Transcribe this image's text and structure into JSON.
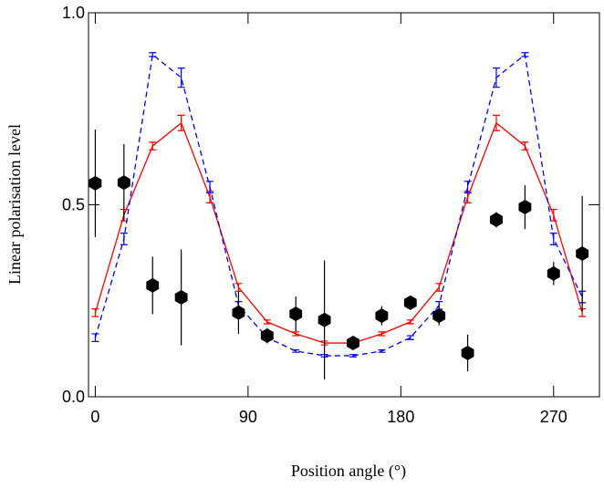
{
  "chart_data": {
    "type": "line",
    "xlabel": "Position angle (°)",
    "ylabel": "Linear polarisation level",
    "x": [
      0,
      16.875,
      33.75,
      50.625,
      67.5,
      84.375,
      101.25,
      118.125,
      135,
      151.875,
      168.75,
      185.625,
      202.5,
      219.375,
      236.25,
      253.125,
      270,
      286.875
    ],
    "xlim": [
      -4,
      297
    ],
    "xticks": [
      0,
      90,
      180,
      270
    ],
    "ylim": [
      0,
      1
    ],
    "yticks": [
      {
        "value": 0,
        "label": "0.0"
      },
      0.5,
      {
        "value": 1,
        "label": "1.0"
      }
    ],
    "series": [
      {
        "type": "line",
        "color": "#ff0000",
        "dashed": false,
        "values": [
          0.219,
          0.473,
          0.653,
          0.713,
          0.52,
          0.285,
          0.195,
          0.164,
          0.14,
          0.14,
          0.164,
          0.195,
          0.285,
          0.52,
          0.713,
          0.653,
          0.473,
          0.219
        ],
        "errors": [
          0.01,
          0.015,
          0.01,
          0.02,
          0.015,
          0.01,
          0.005,
          0.005,
          0.005,
          0.005,
          0.005,
          0.005,
          0.01,
          0.015,
          0.02,
          0.01,
          0.015,
          0.01
        ]
      },
      {
        "type": "line",
        "color": "#0000ff",
        "dashed": true,
        "values": [
          0.154,
          0.411,
          0.891,
          0.831,
          0.546,
          0.238,
          0.154,
          0.119,
          0.107,
          0.107,
          0.119,
          0.154,
          0.238,
          0.546,
          0.831,
          0.891,
          0.411,
          0.26
        ],
        "errors": [
          0.01,
          0.015,
          0.005,
          0.025,
          0.015,
          0.01,
          0.005,
          0.003,
          0.003,
          0.003,
          0.003,
          0.005,
          0.01,
          0.015,
          0.025,
          0.005,
          0.015,
          0.015
        ]
      },
      {
        "type": "scatter",
        "color": "#000000",
        "values": [
          0.556,
          0.558,
          0.29,
          0.259,
          null,
          0.219,
          0.159,
          0.216,
          0.2,
          0.14,
          0.211,
          0.245,
          0.211,
          0.114,
          0.461,
          0.494,
          0.321,
          0.373
        ],
        "errors": [
          0.14,
          0.1,
          0.075,
          0.125,
          null,
          0.055,
          0.02,
          0.045,
          0.155,
          0.015,
          0.025,
          0.015,
          0.025,
          0.048,
          0.02,
          0.057,
          0.03,
          0.15
        ]
      }
    ]
  }
}
